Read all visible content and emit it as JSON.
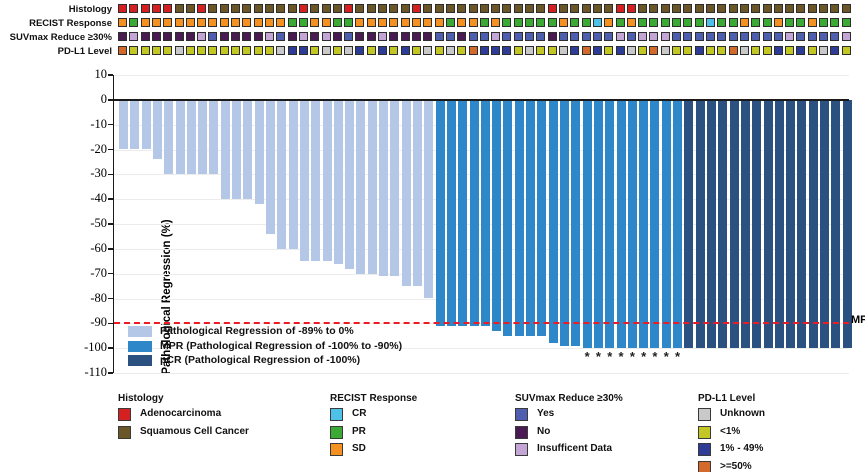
{
  "chart_data": {
    "type": "bar",
    "title": "",
    "xlabel": "",
    "ylabel": "Pathological Regression (%)",
    "ylim": [
      -110,
      10
    ],
    "grid": true,
    "yticks": [
      10,
      0,
      -10,
      -20,
      -30,
      -40,
      -50,
      -60,
      -70,
      -80,
      -90,
      -100,
      -110
    ],
    "n_bars": 65,
    "values": [
      -20,
      -20,
      -20,
      -24,
      -30,
      -30,
      -30,
      -30,
      -30,
      -40,
      -40,
      -40,
      -42,
      -54,
      -60,
      -60,
      -65,
      -65,
      -65,
      -66,
      -68,
      -70,
      -70,
      -71,
      -71,
      -75,
      -75,
      -80,
      -91,
      -91,
      -91,
      -91,
      -91,
      -93,
      -95,
      -95,
      -95,
      -95,
      -98,
      -99,
      -99,
      -100,
      -100,
      -100,
      -100,
      -100,
      -100,
      -100,
      -100,
      -100,
      -100,
      -100,
      -100,
      -100,
      -100,
      -100,
      -100,
      -100,
      -100,
      -100,
      -100,
      -100,
      -100,
      -100,
      -100
    ],
    "bar_categories": "LLLLLLLLLLLLLLLLLLLLLLLLLLLLMMMMMMMMMMMMMMMMMMMMMMPPPPPPPPPPPPPPP",
    "category_colors": {
      "L": "#b4c7e7",
      "M": "#2e87c8",
      "P": "#2b5181"
    },
    "asterisk_bar_indices": [
      42,
      43,
      44,
      45,
      46,
      47,
      48,
      49,
      50
    ],
    "asterisk_symbol": "*",
    "mpr_line": {
      "value": -90,
      "label": "MPR",
      "color": "#ed1c24"
    },
    "bar_legend": [
      {
        "label": "Pathological Regression of -89% to 0%",
        "color": "#b4c7e7"
      },
      {
        "label": "MPR (Pathological Regression of -100% to -90%)",
        "color": "#2e87c8"
      },
      {
        "label": "pCR (Pathological Regression of -100%)",
        "color": "#2b5181"
      }
    ],
    "tracks": [
      {
        "label": "Histology",
        "codes": "AAAAASSASSSSSSSSASSSASSSSSASSSSSSSSSSSASSSSSAASSSSSSSSSSSSSSSSSSS",
        "palette": {
          "A": "#d42020",
          "S": "#6a5626"
        }
      },
      {
        "label": "RECIST Response",
        "codes": "OGOOOOOOOOOOOOOGGOOGGOOOOOOOOGOOGOGGGGGOGGCOGOGGGGGGCGGOGGOGGOGGG",
        "palette": {
          "O": "#f59120",
          "G": "#3aaa35",
          "C": "#4ec1e8"
        }
      },
      {
        "label": "SUVmax Reduce ≥30%",
        "codes": "NINNNNNIYNNNNIYNININYNNINNNNYYNYYIYYYYNYYYYYIYIIIYYYYYYYYYYIYYYYI",
        "palette": {
          "Y": "#4d5fae",
          "N": "#4a1a52",
          "I": "#c3a5d6"
        }
      },
      {
        "label": "PD-L1 Level",
        "codes": "HLLLLULLLLLLLLUMMLULUMLMLMLULULHMMMLULLUMHMLMULHULLMLLHULLMLMLUML",
        "palette": {
          "U": "#c9c9c9",
          "L": "#c3c724",
          "M": "#2c3c97",
          "H": "#d4692c"
        }
      }
    ]
  },
  "legend_groups": [
    {
      "title": "Histology",
      "items": [
        {
          "label": "Adenocarcinoma",
          "color": "#d42020"
        },
        {
          "label": "Squamous Cell Cancer",
          "color": "#6a5626"
        }
      ]
    },
    {
      "title": "RECIST Response",
      "items": [
        {
          "label": "CR",
          "color": "#4ec1e8"
        },
        {
          "label": "PR",
          "color": "#3aaa35"
        },
        {
          "label": "SD",
          "color": "#f59120"
        }
      ]
    },
    {
      "title": "SUVmax Reduce ≥30%",
      "items": [
        {
          "label": "Yes",
          "color": "#4d5fae"
        },
        {
          "label": "No",
          "color": "#4a1a52"
        },
        {
          "label": "Insufficent Data",
          "color": "#c3a5d6"
        }
      ]
    },
    {
      "title": "PD-L1 Level",
      "items": [
        {
          "label": "Unknown",
          "color": "#c9c9c9"
        },
        {
          "label": "<1%",
          "color": "#c3c724"
        },
        {
          "label": "1% - 49%",
          "color": "#2c3c97"
        },
        {
          "label": ">=50%",
          "color": "#d4692c"
        }
      ]
    }
  ]
}
